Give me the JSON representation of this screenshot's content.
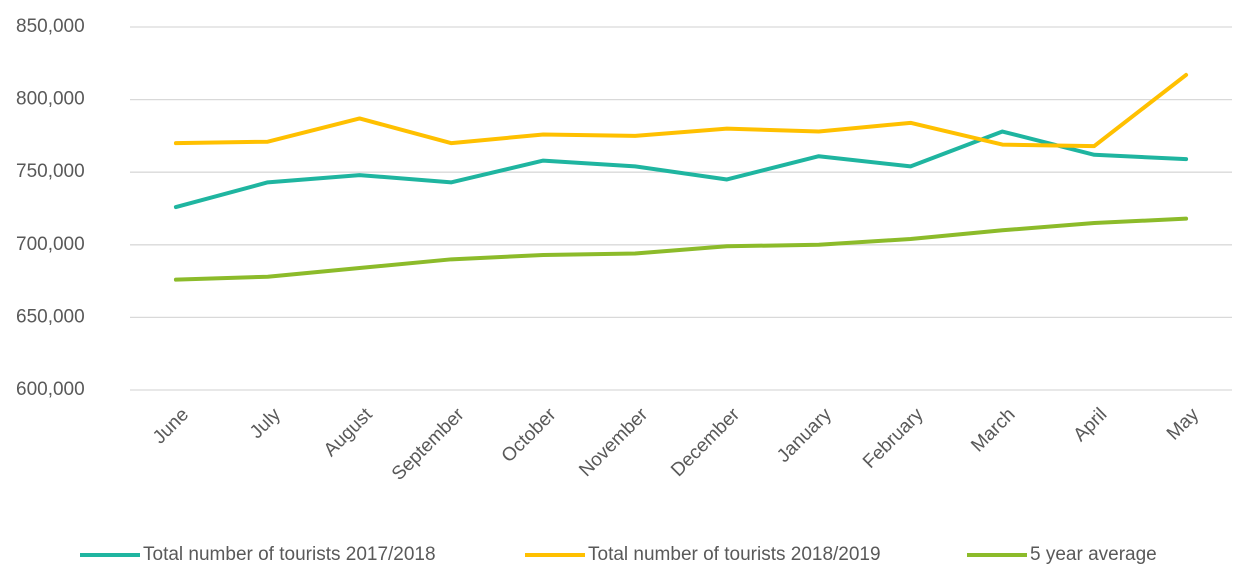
{
  "chart_data": {
    "type": "line",
    "categories": [
      "June",
      "July",
      "August",
      "September",
      "October",
      "November",
      "December",
      "January",
      "February",
      "March",
      "April",
      "May"
    ],
    "series": [
      {
        "name": "Total number of tourists 2017/2018",
        "color": "#1fb5a0",
        "values": [
          726000,
          743000,
          748000,
          743000,
          758000,
          754000,
          745000,
          761000,
          754000,
          778000,
          762000,
          759000
        ]
      },
      {
        "name": "Total number of tourists 2018/2019",
        "color": "#ffc000",
        "values": [
          770000,
          771000,
          787000,
          770000,
          776000,
          775000,
          780000,
          778000,
          784000,
          769000,
          768000,
          817000
        ]
      },
      {
        "name": "5 year average",
        "color": "#8cbb2a",
        "values": [
          676000,
          678000,
          684000,
          690000,
          693000,
          694000,
          699000,
          700000,
          704000,
          710000,
          715000,
          718000
        ]
      }
    ],
    "ylim": [
      600000,
      850000
    ],
    "yticks": [
      {
        "value": 600000,
        "label": "600,000"
      },
      {
        "value": 650000,
        "label": "650,000"
      },
      {
        "value": 700000,
        "label": "700,000"
      },
      {
        "value": 750000,
        "label": "750,000"
      },
      {
        "value": 800000,
        "label": "800,000"
      },
      {
        "value": 850000,
        "label": "850,000"
      }
    ],
    "grid": true,
    "legend": "bottom"
  }
}
